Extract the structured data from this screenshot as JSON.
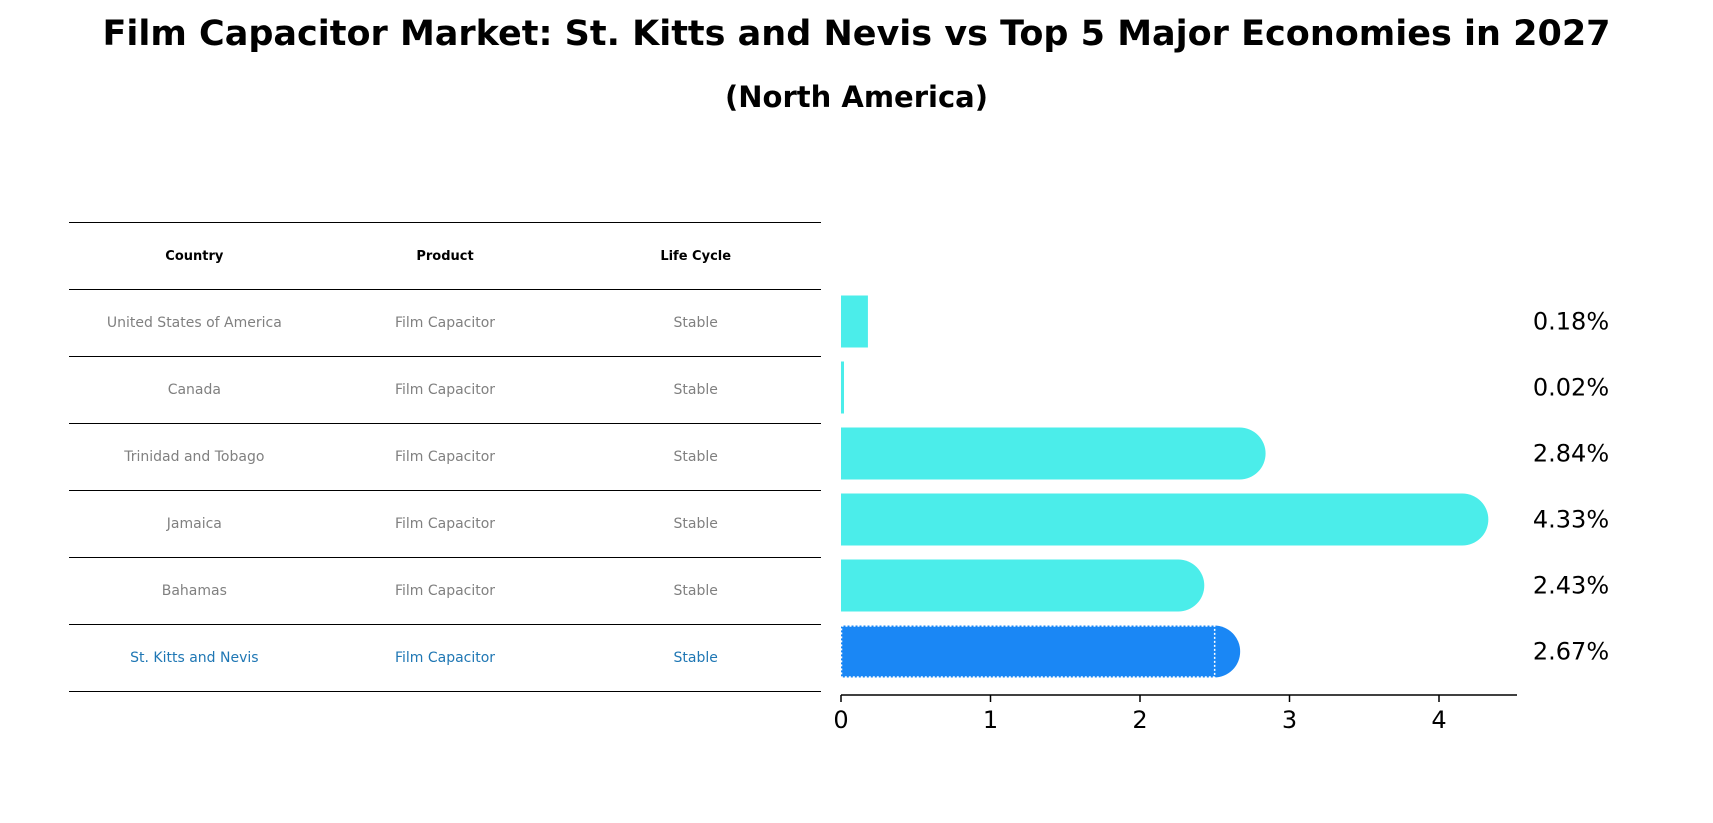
{
  "title": "Film Capacitor Market: St. Kitts and Nevis vs Top 5 Major Economies in 2027",
  "subtitle": "(North America)",
  "table": {
    "headers": [
      "Country",
      "Product",
      "Life Cycle"
    ],
    "rows": [
      [
        "United States of America",
        "Film Capacitor",
        "Stable"
      ],
      [
        "Canada",
        "Film Capacitor",
        "Stable"
      ],
      [
        "Trinidad and Tobago",
        "Film Capacitor",
        "Stable"
      ],
      [
        "Jamaica",
        "Film Capacitor",
        "Stable"
      ],
      [
        "Bahamas",
        "Film Capacitor",
        "Stable"
      ],
      [
        "St. Kitts and Nevis",
        "Film Capacitor",
        "Stable"
      ]
    ],
    "highlight_row": 5
  },
  "chart_data": {
    "type": "bar",
    "orientation": "horizontal",
    "categories": [
      "United States of America",
      "Canada",
      "Trinidad and Tobago",
      "Jamaica",
      "Bahamas",
      "St. Kitts and Nevis"
    ],
    "values": [
      0.18,
      0.02,
      2.84,
      4.33,
      2.43,
      2.67
    ],
    "value_labels": [
      "0.18%",
      "0.02%",
      "2.84%",
      "4.33%",
      "2.43%",
      "2.67%"
    ],
    "x_ticks": [
      "0",
      "1",
      "2",
      "3",
      "4"
    ],
    "xlim": [
      0,
      4.5
    ],
    "colors": {
      "default": "#4BEDEA",
      "highlight": "#1A87F5"
    },
    "highlight_index": 5
  }
}
